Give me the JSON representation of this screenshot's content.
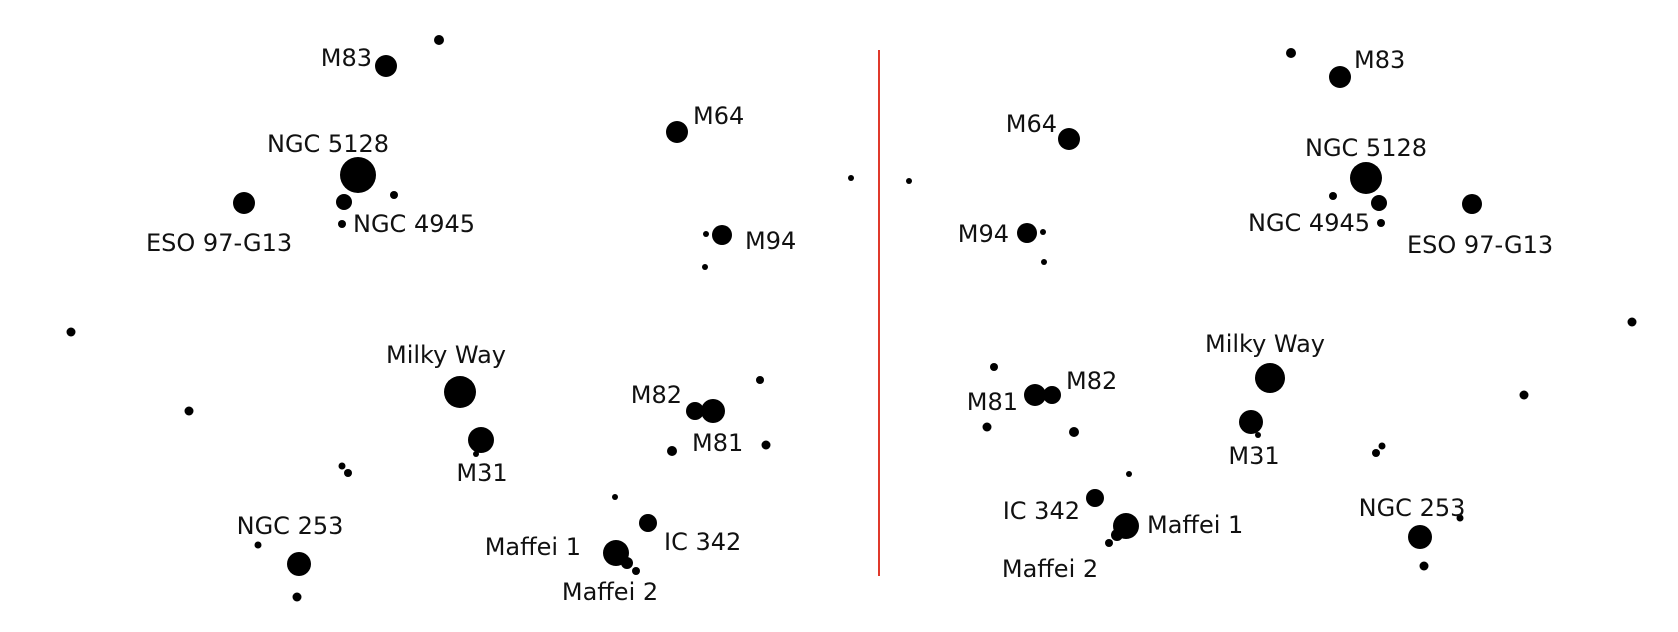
{
  "colors": {
    "background": "#ffffff",
    "dot": "#000000",
    "label": "#111111",
    "divider": "#e0392b"
  },
  "panels": [
    {
      "id": "left",
      "labels": {
        "m83": "M83",
        "ngc5128": "NGC 5128",
        "eso97": "ESO 97-G13",
        "ngc4945": "NGC 4945",
        "m64": "M64",
        "m94": "M94",
        "milkyway": "Milky Way",
        "m31": "M31",
        "m82": "M82",
        "m81": "M81",
        "ngc253": "NGC 253",
        "maffei1": "Maffei 1",
        "ic342": "IC 342",
        "maffei2": "Maffei 2"
      }
    },
    {
      "id": "right",
      "labels": {
        "m83": "M83",
        "m64": "M64",
        "ngc5128": "NGC 5128",
        "m94": "M94",
        "ngc4945": "NGC 4945",
        "eso97": "ESO 97-G13",
        "milkyway": "Milky Way",
        "m82": "M82",
        "m81": "M81",
        "m31": "M31",
        "ic342": "IC 342",
        "maffei1": "Maffei 1",
        "ngc253": "NGC 253",
        "maffei2": "Maffei 2"
      }
    }
  ]
}
